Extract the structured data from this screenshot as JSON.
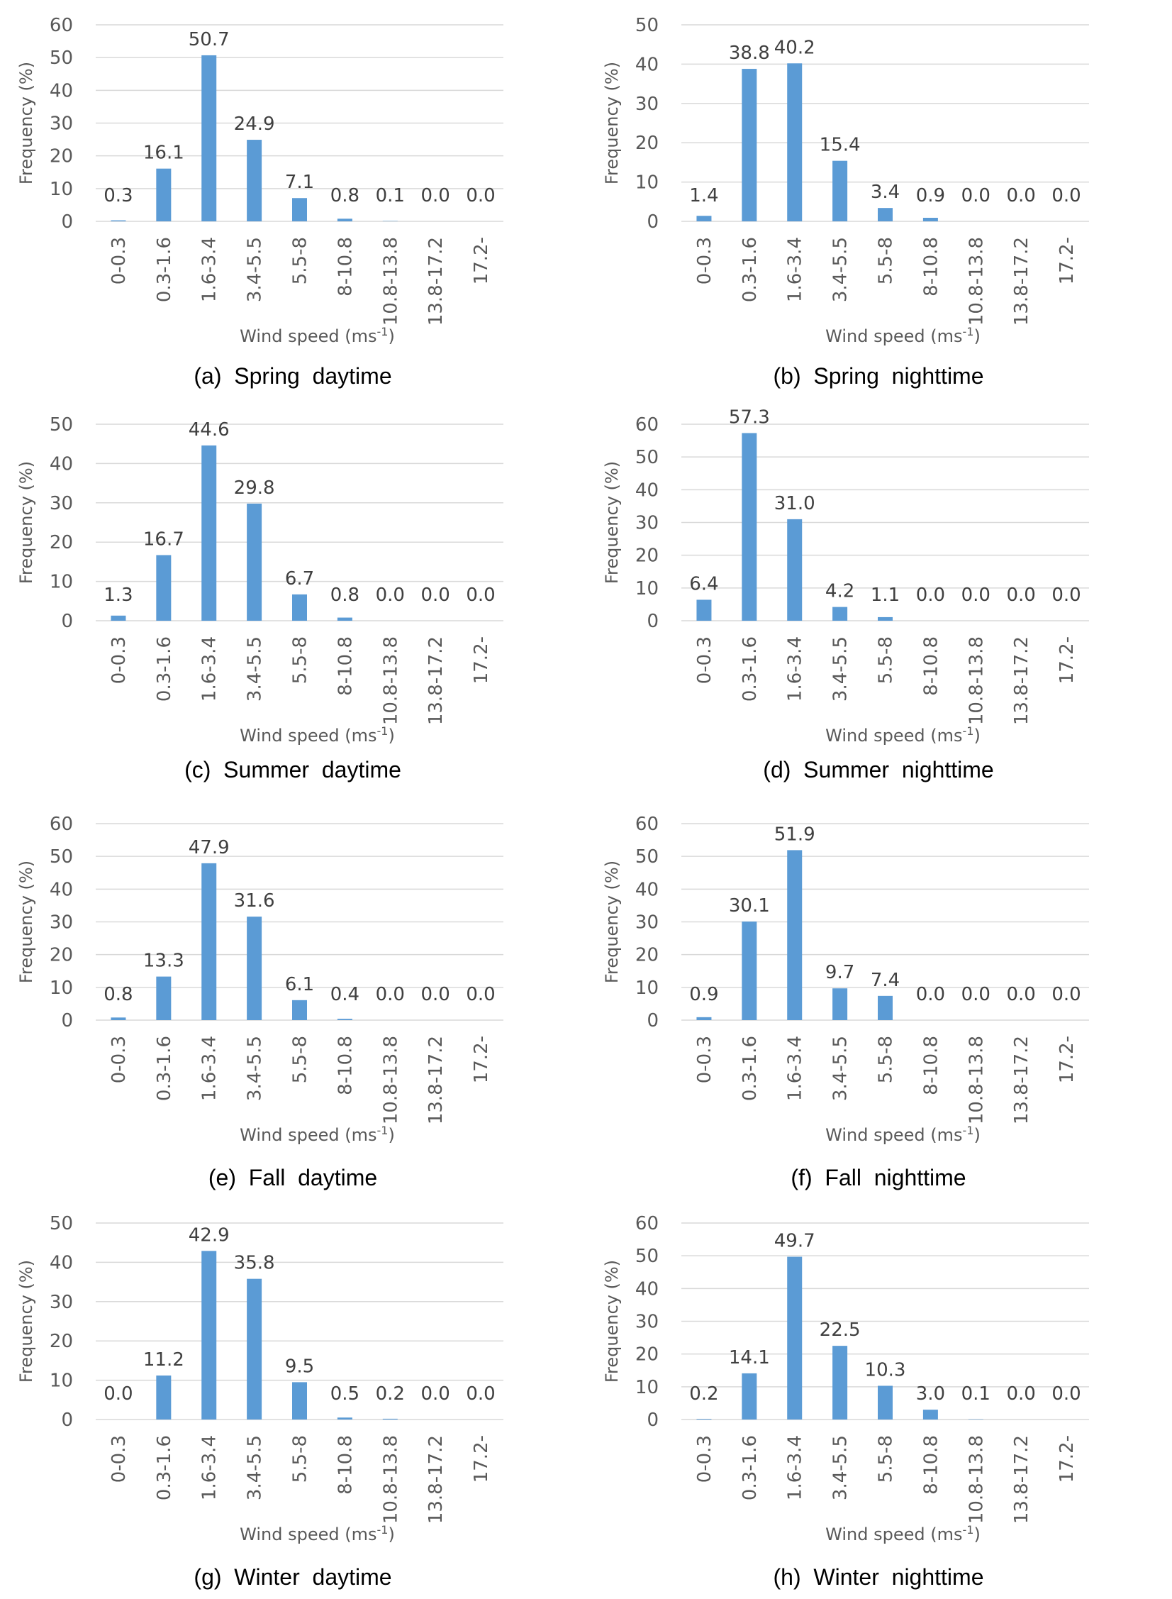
{
  "chart_data": [
    {
      "type": "bar",
      "caption": "(a)  Spring  daytime",
      "ylabel": "Frequency (%)",
      "xlabel": "Wind speed (ms",
      "xlabel_sup": "-1",
      "xlabel_end": ")",
      "ylim": [
        0,
        60
      ],
      "yticks": [
        0,
        10,
        20,
        30,
        40,
        50,
        60
      ],
      "categories": [
        "0-0.3",
        "0.3-1.6",
        "1.6-3.4",
        "3.4-5.5",
        "5.5-8",
        "8-10.8",
        "10.8-13.8",
        "13.8-17.2",
        "17.2-"
      ],
      "values": [
        0.3,
        16.1,
        50.7,
        24.9,
        7.1,
        0.8,
        0.1,
        0.0,
        0.0
      ],
      "labels": [
        "0.3",
        "16.1",
        "50.7",
        "24.9",
        "7.1",
        "0.8",
        "0.1",
        "0.0",
        "0.0"
      ]
    },
    {
      "type": "bar",
      "caption": "(b)  Spring  nighttime",
      "ylabel": "Frequency (%)",
      "xlabel": "Wind speed (ms",
      "xlabel_sup": "-1",
      "xlabel_end": ")",
      "ylim": [
        0,
        50
      ],
      "yticks": [
        0,
        10,
        20,
        30,
        40,
        50
      ],
      "categories": [
        "0-0.3",
        "0.3-1.6",
        "1.6-3.4",
        "3.4-5.5",
        "5.5-8",
        "8-10.8",
        "10.8-13.8",
        "13.8-17.2",
        "17.2-"
      ],
      "values": [
        1.4,
        38.8,
        40.2,
        15.4,
        3.4,
        0.9,
        0.0,
        0.0,
        0.0
      ],
      "labels": [
        "1.4",
        "38.8",
        "40.2",
        "15.4",
        "3.4",
        "0.9",
        "0.0",
        "0.0",
        "0.0"
      ]
    },
    {
      "type": "bar",
      "caption": "(c)  Summer  daytime",
      "ylabel": "Frequency (%)",
      "xlabel": "Wind speed (ms",
      "xlabel_sup": "-1",
      "xlabel_end": ")",
      "ylim": [
        0,
        50
      ],
      "yticks": [
        0,
        10,
        20,
        30,
        40,
        50
      ],
      "categories": [
        "0-0.3",
        "0.3-1.6",
        "1.6-3.4",
        "3.4-5.5",
        "5.5-8",
        "8-10.8",
        "10.8-13.8",
        "13.8-17.2",
        "17.2-"
      ],
      "values": [
        1.3,
        16.7,
        44.6,
        29.8,
        6.7,
        0.8,
        0.0,
        0.0,
        0.0
      ],
      "labels": [
        "1.3",
        "16.7",
        "44.6",
        "29.8",
        "6.7",
        "0.8",
        "0.0",
        "0.0",
        "0.0"
      ]
    },
    {
      "type": "bar",
      "caption": "(d)  Summer  nighttime",
      "ylabel": "Frequency (%)",
      "xlabel": "Wind speed (ms",
      "xlabel_sup": "-1",
      "xlabel_end": ")",
      "ylim": [
        0,
        60
      ],
      "yticks": [
        0,
        10,
        20,
        30,
        40,
        50,
        60
      ],
      "categories": [
        "0-0.3",
        "0.3-1.6",
        "1.6-3.4",
        "3.4-5.5",
        "5.5-8",
        "8-10.8",
        "10.8-13.8",
        "13.8-17.2",
        "17.2-"
      ],
      "values": [
        6.4,
        57.3,
        31.0,
        4.2,
        1.1,
        0.0,
        0.0,
        0.0,
        0.0
      ],
      "labels": [
        "6.4",
        "57.3",
        "31.0",
        "4.2",
        "1.1",
        "0.0",
        "0.0",
        "0.0",
        "0.0"
      ]
    },
    {
      "type": "bar",
      "caption": "(e)  Fall  daytime",
      "ylabel": "Frequency (%)",
      "xlabel": "Wind speed (ms",
      "xlabel_sup": "-1",
      "xlabel_end": ")",
      "ylim": [
        0,
        60
      ],
      "yticks": [
        0,
        10,
        20,
        30,
        40,
        50,
        60
      ],
      "categories": [
        "0-0.3",
        "0.3-1.6",
        "1.6-3.4",
        "3.4-5.5",
        "5.5-8",
        "8-10.8",
        "10.8-13.8",
        "13.8-17.2",
        "17.2-"
      ],
      "values": [
        0.8,
        13.3,
        47.9,
        31.6,
        6.1,
        0.4,
        0.0,
        0.0,
        0.0
      ],
      "labels": [
        "0.8",
        "13.3",
        "47.9",
        "31.6",
        "6.1",
        "0.4",
        "0.0",
        "0.0",
        "0.0"
      ]
    },
    {
      "type": "bar",
      "caption": "(f)  Fall  nighttime",
      "ylabel": "Frequency (%)",
      "xlabel": "Wind speed (ms",
      "xlabel_sup": "-1",
      "xlabel_end": ")",
      "ylim": [
        0,
        60
      ],
      "yticks": [
        0,
        10,
        20,
        30,
        40,
        50,
        60
      ],
      "categories": [
        "0-0.3",
        "0.3-1.6",
        "1.6-3.4",
        "3.4-5.5",
        "5.5-8",
        "8-10.8",
        "10.8-13.8",
        "13.8-17.2",
        "17.2-"
      ],
      "values": [
        0.9,
        30.1,
        51.9,
        9.7,
        7.4,
        0.0,
        0.0,
        0.0,
        0.0
      ],
      "labels": [
        "0.9",
        "30.1",
        "51.9",
        "9.7",
        "7.4",
        "0.0",
        "0.0",
        "0.0",
        "0.0"
      ]
    },
    {
      "type": "bar",
      "caption": "(g)  Winter  daytime",
      "ylabel": "Frequency (%)",
      "xlabel": "Wind speed (ms",
      "xlabel_sup": "-1",
      "xlabel_end": ")",
      "ylim": [
        0,
        50
      ],
      "yticks": [
        0,
        10,
        20,
        30,
        40,
        50
      ],
      "categories": [
        "0-0.3",
        "0.3-1.6",
        "1.6-3.4",
        "3.4-5.5",
        "5.5-8",
        "8-10.8",
        "10.8-13.8",
        "13.8-17.2",
        "17.2-"
      ],
      "values": [
        0.0,
        11.2,
        42.9,
        35.8,
        9.5,
        0.5,
        0.2,
        0.0,
        0.0
      ],
      "labels": [
        "0.0",
        "11.2",
        "42.9",
        "35.8",
        "9.5",
        "0.5",
        "0.2",
        "0.0",
        "0.0"
      ]
    },
    {
      "type": "bar",
      "caption": "(h)  Winter  nighttime",
      "ylabel": "Frequency (%)",
      "xlabel": "Wind speed (ms",
      "xlabel_sup": "-1",
      "xlabel_end": ")",
      "ylim": [
        0,
        60
      ],
      "yticks": [
        0,
        10,
        20,
        30,
        40,
        50,
        60
      ],
      "categories": [
        "0-0.3",
        "0.3-1.6",
        "1.6-3.4",
        "3.4-5.5",
        "5.5-8",
        "8-10.8",
        "10.8-13.8",
        "13.8-17.2",
        "17.2-"
      ],
      "values": [
        0.2,
        14.1,
        49.7,
        22.5,
        10.3,
        3.0,
        0.1,
        0.0,
        0.0
      ],
      "labels": [
        "0.2",
        "14.1",
        "49.7",
        "22.5",
        "10.3",
        "3.0",
        "0.1",
        "0.0",
        "0.0"
      ]
    }
  ],
  "colors": {
    "bar": "#5b9bd5",
    "grid": "#d9d9d9",
    "tick": "#595959"
  }
}
